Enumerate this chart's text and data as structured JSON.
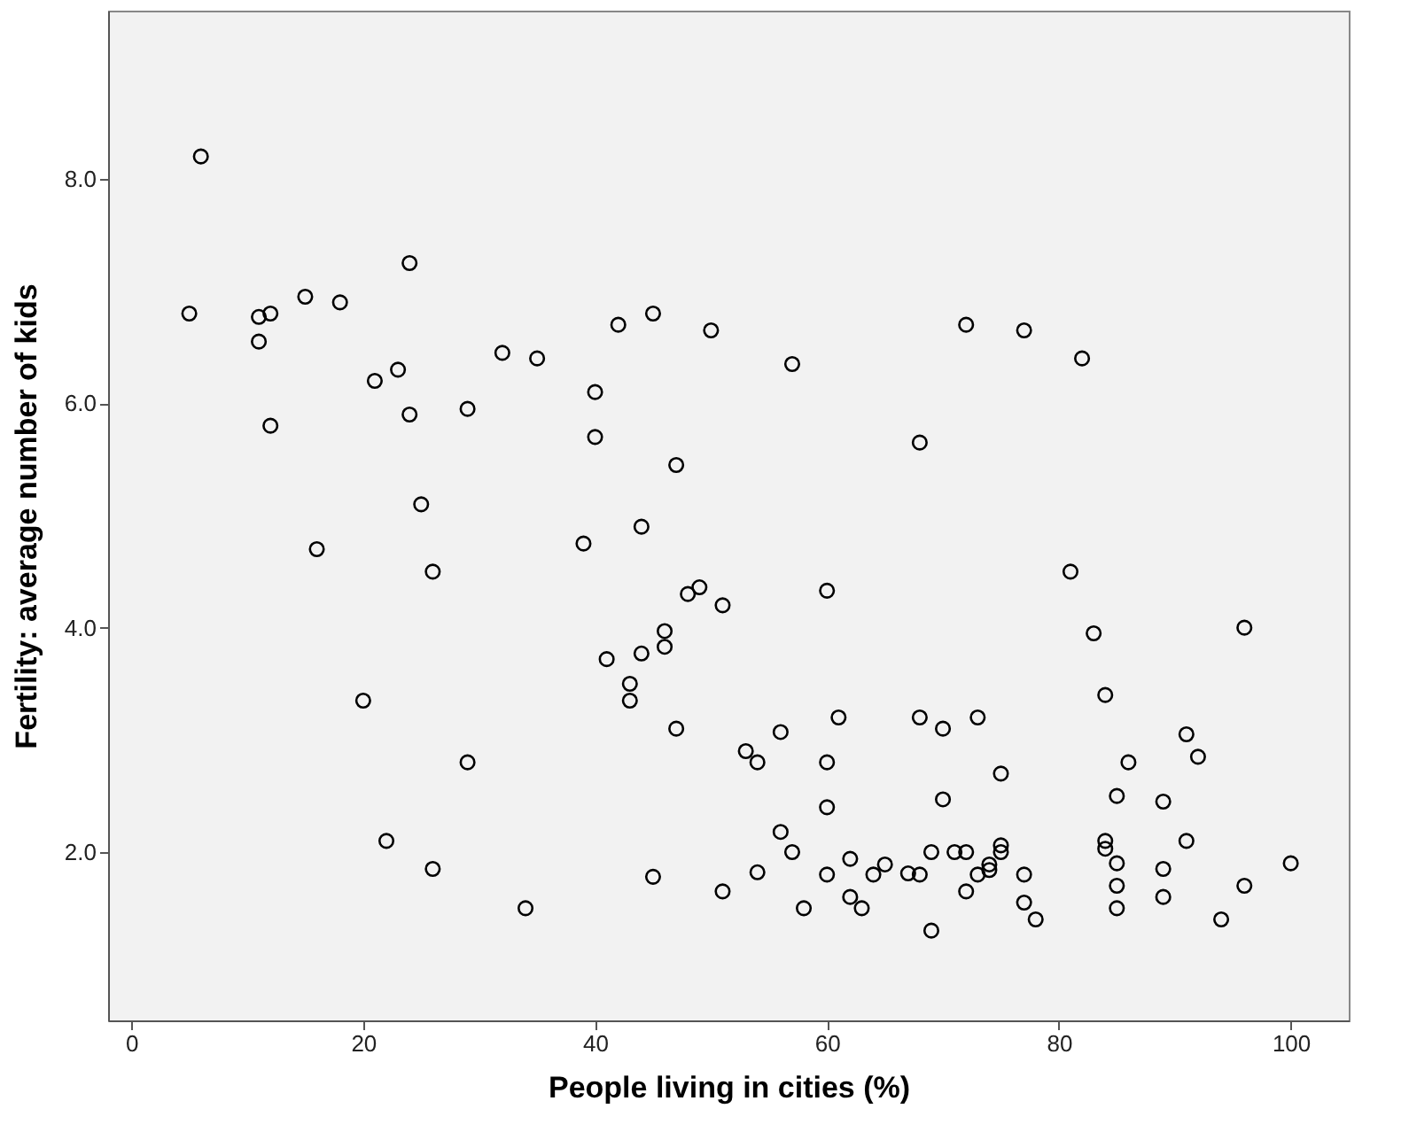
{
  "chart_data": {
    "type": "scatter",
    "xlabel": "People living in cities (%)",
    "ylabel": "Fertility: average number of kids",
    "xlim": [
      -2,
      105
    ],
    "ylim": [
      0.5,
      9.5
    ],
    "xticks": [
      0,
      20,
      40,
      60,
      80,
      100
    ],
    "yticks": [
      {
        "value": 2,
        "label": "2.0"
      },
      {
        "value": 4,
        "label": "4.0"
      },
      {
        "value": 6,
        "label": "6.0"
      },
      {
        "value": 8,
        "label": "8.0"
      }
    ],
    "grid": false,
    "marker": "circle",
    "series": [
      {
        "color": "#000000",
        "x": [
          6,
          5,
          11,
          12,
          15,
          18,
          24,
          11,
          12,
          21,
          23,
          24,
          29,
          32,
          35,
          25,
          16,
          26,
          20,
          29,
          22,
          26,
          34,
          42,
          45,
          50,
          40,
          40,
          47,
          44,
          39,
          57,
          68,
          72,
          77,
          82,
          81,
          83,
          96,
          84,
          91,
          92,
          86,
          85,
          89,
          91,
          84,
          84,
          85,
          89,
          100,
          85,
          96,
          89,
          85,
          94,
          60,
          51,
          49,
          48,
          61,
          68,
          70,
          73,
          56,
          53,
          54,
          60,
          75,
          70,
          60,
          56,
          57,
          62,
          65,
          64,
          67,
          68,
          69,
          71,
          72,
          73,
          74,
          74,
          75,
          75,
          77,
          72,
          77,
          78,
          69,
          62,
          63,
          58,
          60,
          54,
          51,
          46,
          46,
          44,
          41,
          43,
          43,
          47,
          45
        ],
        "values": [
          8.2,
          6.8,
          6.77,
          6.8,
          6.95,
          6.9,
          7.25,
          6.55,
          5.8,
          6.2,
          6.3,
          5.9,
          5.95,
          6.45,
          6.4,
          5.1,
          4.7,
          4.5,
          3.35,
          2.8,
          2.1,
          1.85,
          1.5,
          6.7,
          6.8,
          6.65,
          6.1,
          5.7,
          5.45,
          4.9,
          4.75,
          6.35,
          5.65,
          6.7,
          6.65,
          6.4,
          4.5,
          3.95,
          4.0,
          3.4,
          3.05,
          2.85,
          2.8,
          2.5,
          2.45,
          2.1,
          2.1,
          2.03,
          1.9,
          1.85,
          1.9,
          1.7,
          1.7,
          1.6,
          1.5,
          1.4,
          4.33,
          4.2,
          4.36,
          4.3,
          3.2,
          3.2,
          3.1,
          3.2,
          3.07,
          2.9,
          2.8,
          2.8,
          2.7,
          2.47,
          2.4,
          2.18,
          2.0,
          1.94,
          1.89,
          1.8,
          1.81,
          1.8,
          2.0,
          2.0,
          2.0,
          1.8,
          1.89,
          1.84,
          2.06,
          2.0,
          1.8,
          1.65,
          1.55,
          1.4,
          1.3,
          1.6,
          1.5,
          1.5,
          1.8,
          1.82,
          1.65,
          3.97,
          3.83,
          3.77,
          3.72,
          3.5,
          3.35,
          3.1,
          1.78
        ]
      }
    ]
  }
}
